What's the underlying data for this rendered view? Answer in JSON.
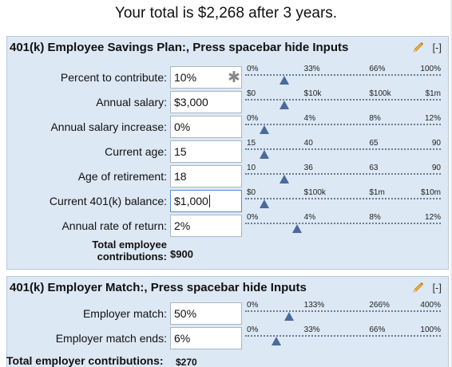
{
  "summary": {
    "text": "Your total is $2,268 after 3 years."
  },
  "employee_panel": {
    "title": "401(k) Employee Savings Plan:, Press spacebar hide Inputs",
    "icon": "pencil-icon",
    "collapse_label": "[-]",
    "rows": [
      {
        "label": "Percent to contribute:",
        "value": "10%",
        "ticks": [
          "0%",
          "33%",
          "66%",
          "100%"
        ],
        "position": 0.1,
        "has_clear": true
      },
      {
        "label": "Annual salary:",
        "value": "$3,000",
        "ticks": [
          "$0",
          "$10k",
          "$100k",
          "$1m"
        ],
        "position": 0.1
      },
      {
        "label": "Annual salary increase:",
        "value": "0%",
        "ticks": [
          "0%",
          "4%",
          "8%",
          "12%"
        ],
        "position": 0.0
      },
      {
        "label": "Current age:",
        "value": "15",
        "ticks": [
          "15",
          "40",
          "65",
          "90"
        ],
        "position": 0.0
      },
      {
        "label": "Age of retirement:",
        "value": "18",
        "ticks": [
          "10",
          "36",
          "63",
          "90"
        ],
        "position": 0.1
      },
      {
        "label": "Current 401(k) balance:",
        "value": "$1,000",
        "ticks": [
          "$0",
          "$100k",
          "$1m",
          "$10m"
        ],
        "position": 0.0,
        "focused": true
      },
      {
        "label": "Annual rate of return:",
        "value": "2%",
        "ticks": [
          "0%",
          "4%",
          "8%",
          "12%"
        ],
        "position": 0.167
      }
    ],
    "total_label": "Total employee contributions:",
    "total_value": "$900"
  },
  "employer_panel": {
    "title": "401(k) Employer Match:, Press spacebar hide Inputs",
    "icon": "pencil-icon",
    "collapse_label": "[-]",
    "rows": [
      {
        "label": "Employer match:",
        "value": "50%",
        "ticks": [
          "0%",
          "133%",
          "266%",
          "400%"
        ],
        "position": 0.125
      },
      {
        "label": "Employer match ends:",
        "value": "6%",
        "ticks": [
          "0%",
          "33%",
          "66%",
          "100%"
        ],
        "position": 0.06
      }
    ],
    "total_label": "Total employer contributions:",
    "total_value": "$270"
  }
}
